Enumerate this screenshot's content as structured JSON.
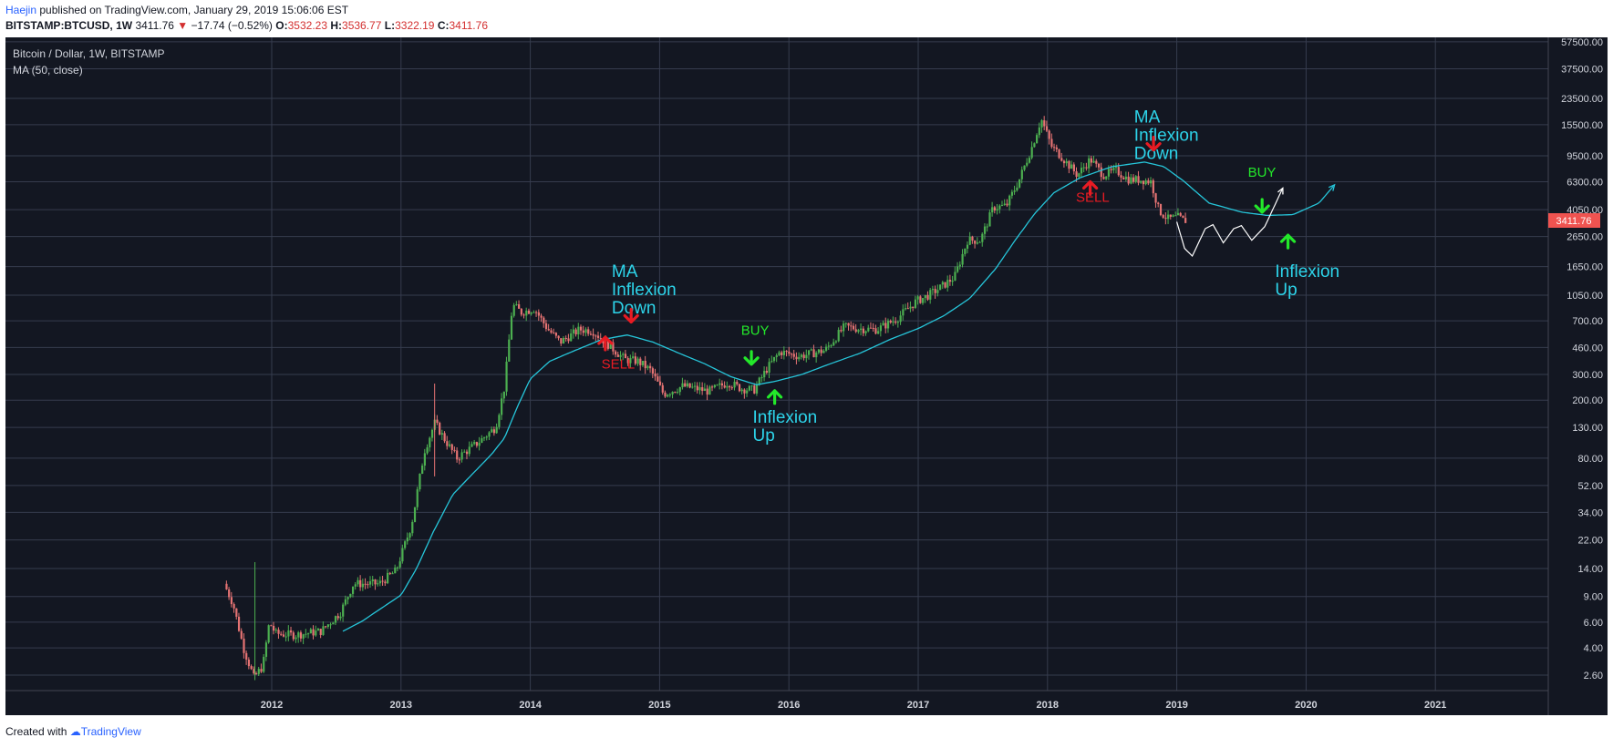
{
  "header": {
    "author": "Haejin",
    "published_text": "published on TradingView.com, January 29, 2019 15:06:06 EST"
  },
  "ticker": {
    "symbol": "BITSTAMP:BTCUSD, 1W",
    "last": "3411.76",
    "change_arrow": "▼",
    "change": "−17.74 (−0.52%)",
    "open_label": "O:",
    "open": "3532.23",
    "high_label": "H:",
    "high": "3536.77",
    "low_label": "L:",
    "low": "3322.19",
    "close_label": "C:",
    "close": "3411.76"
  },
  "chart_header": {
    "title": "Bitcoin / Dollar, 1W, BITSTAMP",
    "indicator": "MA (50, close)"
  },
  "price_badge": "3411.76",
  "footer": {
    "created_with": "Created with",
    "brand": "TradingView"
  },
  "colors": {
    "background": "#131722",
    "grid": "#363c4e",
    "up": "#4caf50",
    "down": "#e57373",
    "ma": "#26c6da",
    "annotation_cyan": "#2dd4ea",
    "annotation_red": "#e81b23",
    "annotation_green": "#23e82a",
    "badge": "#ef5350"
  },
  "chart_data": {
    "type": "candlestick",
    "title": "Bitcoin / Dollar, 1W, BITSTAMP",
    "scale": "log",
    "y_tick_labels": [
      "57500.00",
      "37500.00",
      "23500.00",
      "15500.00",
      "9500.00",
      "6300.00",
      "4050.00",
      "2650.00",
      "1650.00",
      "1050.00",
      "700.00",
      "460.00",
      "300.00",
      "200.00",
      "130.00",
      "80.00",
      "52.00",
      "34.00",
      "22.00",
      "14.00",
      "9.00",
      "6.00",
      "4.00",
      "2.60"
    ],
    "x_tick_labels": [
      "2012",
      "2013",
      "2014",
      "2015",
      "2016",
      "2017",
      "2018",
      "2019",
      "2020",
      "2021"
    ],
    "price_keypoints": [
      {
        "t": 2011.65,
        "p": 11
      },
      {
        "t": 2011.72,
        "p": 8
      },
      {
        "t": 2011.8,
        "p": 4
      },
      {
        "t": 2011.88,
        "p": 2.5
      },
      {
        "t": 2011.95,
        "p": 3
      },
      {
        "t": 2012.0,
        "p": 6
      },
      {
        "t": 2012.05,
        "p": 5
      },
      {
        "t": 2012.2,
        "p": 4.9
      },
      {
        "t": 2012.4,
        "p": 5.2
      },
      {
        "t": 2012.55,
        "p": 7
      },
      {
        "t": 2012.65,
        "p": 11
      },
      {
        "t": 2012.85,
        "p": 11
      },
      {
        "t": 2012.98,
        "p": 13.5
      },
      {
        "t": 2013.1,
        "p": 28
      },
      {
        "t": 2013.2,
        "p": 90
      },
      {
        "t": 2013.28,
        "p": 140
      },
      {
        "t": 2013.35,
        "p": 110
      },
      {
        "t": 2013.45,
        "p": 80
      },
      {
        "t": 2013.6,
        "p": 100
      },
      {
        "t": 2013.75,
        "p": 130
      },
      {
        "t": 2013.82,
        "p": 250
      },
      {
        "t": 2013.88,
        "p": 900
      },
      {
        "t": 2013.95,
        "p": 800
      },
      {
        "t": 2014.05,
        "p": 850
      },
      {
        "t": 2014.15,
        "p": 620
      },
      {
        "t": 2014.25,
        "p": 500
      },
      {
        "t": 2014.4,
        "p": 610
      },
      {
        "t": 2014.5,
        "p": 600
      },
      {
        "t": 2014.6,
        "p": 500
      },
      {
        "t": 2014.75,
        "p": 380
      },
      {
        "t": 2014.85,
        "p": 370
      },
      {
        "t": 2014.95,
        "p": 320
      },
      {
        "t": 2015.05,
        "p": 220
      },
      {
        "t": 2015.2,
        "p": 250
      },
      {
        "t": 2015.4,
        "p": 230
      },
      {
        "t": 2015.55,
        "p": 265
      },
      {
        "t": 2015.65,
        "p": 240
      },
      {
        "t": 2015.75,
        "p": 235
      },
      {
        "t": 2015.85,
        "p": 330
      },
      {
        "t": 2015.95,
        "p": 430
      },
      {
        "t": 2016.1,
        "p": 400
      },
      {
        "t": 2016.3,
        "p": 440
      },
      {
        "t": 2016.45,
        "p": 640
      },
      {
        "t": 2016.55,
        "p": 620
      },
      {
        "t": 2016.7,
        "p": 610
      },
      {
        "t": 2016.85,
        "p": 720
      },
      {
        "t": 2017.0,
        "p": 950
      },
      {
        "t": 2017.1,
        "p": 1050
      },
      {
        "t": 2017.2,
        "p": 1200
      },
      {
        "t": 2017.3,
        "p": 1400
      },
      {
        "t": 2017.4,
        "p": 2500
      },
      {
        "t": 2017.5,
        "p": 2500
      },
      {
        "t": 2017.6,
        "p": 4200
      },
      {
        "t": 2017.7,
        "p": 4300
      },
      {
        "t": 2017.8,
        "p": 6500
      },
      {
        "t": 2017.9,
        "p": 11000
      },
      {
        "t": 2017.97,
        "p": 17000
      },
      {
        "t": 2018.05,
        "p": 11000
      },
      {
        "t": 2018.12,
        "p": 9500
      },
      {
        "t": 2018.25,
        "p": 7000
      },
      {
        "t": 2018.35,
        "p": 9000
      },
      {
        "t": 2018.45,
        "p": 7000
      },
      {
        "t": 2018.55,
        "p": 7500
      },
      {
        "t": 2018.65,
        "p": 6500
      },
      {
        "t": 2018.75,
        "p": 6500
      },
      {
        "t": 2018.82,
        "p": 6300
      },
      {
        "t": 2018.88,
        "p": 4000
      },
      {
        "t": 2018.95,
        "p": 3500
      },
      {
        "t": 2019.03,
        "p": 3600
      },
      {
        "t": 2019.07,
        "p": 3410
      }
    ],
    "ma50_keypoints": [
      {
        "t": 2012.55,
        "p": 5.2
      },
      {
        "t": 2012.7,
        "p": 6.1
      },
      {
        "t": 2012.85,
        "p": 7.5
      },
      {
        "t": 2013.0,
        "p": 9.2
      },
      {
        "t": 2013.12,
        "p": 14
      },
      {
        "t": 2013.25,
        "p": 25
      },
      {
        "t": 2013.4,
        "p": 45
      },
      {
        "t": 2013.55,
        "p": 62
      },
      {
        "t": 2013.7,
        "p": 85
      },
      {
        "t": 2013.8,
        "p": 110
      },
      {
        "t": 2013.9,
        "p": 180
      },
      {
        "t": 2014.0,
        "p": 280
      },
      {
        "t": 2014.15,
        "p": 370
      },
      {
        "t": 2014.35,
        "p": 440
      },
      {
        "t": 2014.55,
        "p": 520
      },
      {
        "t": 2014.75,
        "p": 560
      },
      {
        "t": 2014.95,
        "p": 500
      },
      {
        "t": 2015.15,
        "p": 420
      },
      {
        "t": 2015.35,
        "p": 355
      },
      {
        "t": 2015.55,
        "p": 290
      },
      {
        "t": 2015.75,
        "p": 255
      },
      {
        "t": 2015.9,
        "p": 270
      },
      {
        "t": 2016.1,
        "p": 300
      },
      {
        "t": 2016.3,
        "p": 350
      },
      {
        "t": 2016.55,
        "p": 420
      },
      {
        "t": 2016.8,
        "p": 530
      },
      {
        "t": 2017.0,
        "p": 620
      },
      {
        "t": 2017.2,
        "p": 760
      },
      {
        "t": 2017.4,
        "p": 1000
      },
      {
        "t": 2017.6,
        "p": 1600
      },
      {
        "t": 2017.75,
        "p": 2500
      },
      {
        "t": 2017.9,
        "p": 3800
      },
      {
        "t": 2018.05,
        "p": 5300
      },
      {
        "t": 2018.25,
        "p": 6700
      },
      {
        "t": 2018.5,
        "p": 8000
      },
      {
        "t": 2018.75,
        "p": 8600
      },
      {
        "t": 2018.9,
        "p": 8000
      },
      {
        "t": 2019.05,
        "p": 6400
      }
    ],
    "projection_path": [
      {
        "t": 2019.0,
        "p": 3350
      },
      {
        "t": 2019.06,
        "p": 2200
      },
      {
        "t": 2019.12,
        "p": 1950
      },
      {
        "t": 2019.22,
        "p": 3000
      },
      {
        "t": 2019.28,
        "p": 3200
      },
      {
        "t": 2019.36,
        "p": 2400
      },
      {
        "t": 2019.44,
        "p": 3000
      },
      {
        "t": 2019.5,
        "p": 3150
      },
      {
        "t": 2019.58,
        "p": 2500
      },
      {
        "t": 2019.68,
        "p": 3100
      },
      {
        "t": 2019.82,
        "p": 5700
      }
    ],
    "ma_projection": [
      {
        "t": 2019.05,
        "p": 6400
      },
      {
        "t": 2019.25,
        "p": 4500
      },
      {
        "t": 2019.5,
        "p": 3900
      },
      {
        "t": 2019.7,
        "p": 3700
      },
      {
        "t": 2019.9,
        "p": 3750
      },
      {
        "t": 2020.1,
        "p": 4500
      },
      {
        "t": 2020.22,
        "p": 6000
      }
    ],
    "annotations": [
      {
        "text": "MA\nInflexion\nDown",
        "t": 2014.63,
        "p": 1400,
        "color": "cyan"
      },
      {
        "text": "SELL",
        "t": 2014.55,
        "p": 330,
        "color": "red"
      },
      {
        "text": "BUY",
        "t": 2015.63,
        "p": 560,
        "color": "green"
      },
      {
        "text": "Inflexion\nUp",
        "t": 2015.72,
        "p": 140,
        "color": "cyan"
      },
      {
        "text": "MA\nInflexion\nDown",
        "t": 2018.67,
        "p": 16000,
        "color": "cyan"
      },
      {
        "text": "SELL",
        "t": 2018.22,
        "p": 4600,
        "color": "red"
      },
      {
        "text": "BUY",
        "t": 2019.55,
        "p": 6800,
        "color": "green"
      },
      {
        "text": "Inflexion\nUp",
        "t": 2019.76,
        "p": 1400,
        "color": "cyan"
      }
    ],
    "arrows": [
      {
        "dir": "down",
        "t": 2014.78,
        "p": 760,
        "color": "red"
      },
      {
        "dir": "up",
        "t": 2014.58,
        "p": 490,
        "color": "red"
      },
      {
        "dir": "down",
        "t": 2015.71,
        "p": 390,
        "color": "green"
      },
      {
        "dir": "up",
        "t": 2015.89,
        "p": 210,
        "color": "green"
      },
      {
        "dir": "down",
        "t": 2018.82,
        "p": 11500,
        "color": "red"
      },
      {
        "dir": "up",
        "t": 2018.33,
        "p": 5700,
        "color": "red"
      },
      {
        "dir": "down",
        "t": 2019.66,
        "p": 4300,
        "color": "green"
      },
      {
        "dir": "up",
        "t": 2019.86,
        "p": 2450,
        "color": "green"
      }
    ]
  }
}
